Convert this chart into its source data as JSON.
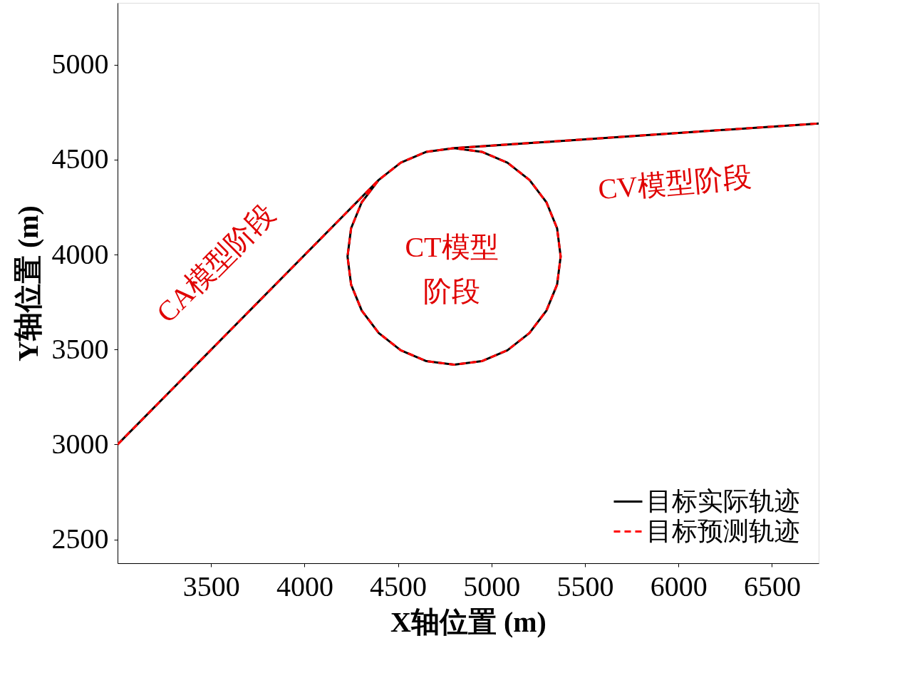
{
  "chart_data": {
    "type": "line",
    "xlabel": "X轴位置 (m)",
    "ylabel": "Y轴位置 (m)",
    "xlim": [
      3000,
      6750
    ],
    "ylim": [
      2375,
      5325
    ],
    "xticks": [
      3500,
      4000,
      4500,
      5000,
      5500,
      6000,
      6500
    ],
    "yticks": [
      2500,
      3000,
      3500,
      4000,
      4500,
      5000
    ],
    "grid": false,
    "legend": "bottom right",
    "marker": "none",
    "series": [
      {
        "name": "目标实际轨迹",
        "color": "#000000",
        "line_style": "solid",
        "x": [
          3000,
          4397,
          4515,
          4652,
          4800,
          4948,
          5085,
          5203,
          5294,
          5351,
          5370,
          5351,
          5294,
          5203,
          5085,
          4948,
          4800,
          4652,
          4515,
          4397,
          4306,
          4249,
          4230,
          4249,
          4306,
          4397,
          4515,
          4652,
          4800,
          6750
        ],
        "values": [
          3000,
          4393,
          4484,
          4541,
          4560,
          4541,
          4484,
          4393,
          4275,
          4138,
          3990,
          3842,
          3705,
          3587,
          3496,
          3439,
          3420,
          3439,
          3496,
          3587,
          3705,
          3842,
          3990,
          4138,
          4275,
          4393,
          4484,
          4541,
          4560,
          4690
        ]
      },
      {
        "name": "目标预测轨迹",
        "color": "#ff0000",
        "line_style": "dashed",
        "x": [
          3000,
          4397,
          4515,
          4652,
          4800,
          4948,
          5085,
          5203,
          5294,
          5351,
          5370,
          5351,
          5294,
          5203,
          5085,
          4948,
          4800,
          4652,
          4515,
          4397,
          4306,
          4249,
          4230,
          4249,
          4306,
          4397,
          4515,
          4652,
          4800,
          6750
        ],
        "values": [
          3000,
          4393,
          4484,
          4541,
          4560,
          4541,
          4484,
          4393,
          4275,
          4138,
          3990,
          3842,
          3705,
          3587,
          3496,
          3439,
          3420,
          3439,
          3496,
          3587,
          3705,
          3842,
          3990,
          4138,
          4275,
          4393,
          4484,
          4541,
          4560,
          4690
        ]
      }
    ],
    "annotations": [
      "CA模型阶段",
      "CT模型阶段",
      "CV模型阶段"
    ]
  }
}
